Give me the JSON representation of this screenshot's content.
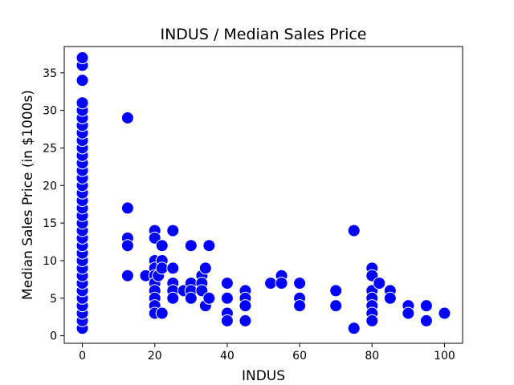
{
  "chart_data": {
    "type": "scatter",
    "title": "INDUS / Median Sales Price",
    "xlabel": "INDUS",
    "ylabel": "Median Sales Price (in $1000s)",
    "xlim": [
      -5,
      105
    ],
    "ylim": [
      -1,
      38.5
    ],
    "xticks": [
      0,
      20,
      40,
      60,
      80,
      100
    ],
    "yticks": [
      0,
      5,
      10,
      15,
      20,
      25,
      30,
      35
    ],
    "grid": false,
    "legend": "none",
    "marker_color": "#0000ff",
    "points": [
      [
        0,
        1
      ],
      [
        0,
        2
      ],
      [
        0,
        3
      ],
      [
        0,
        4
      ],
      [
        0,
        5
      ],
      [
        0,
        6
      ],
      [
        0,
        7
      ],
      [
        0,
        8
      ],
      [
        0,
        9
      ],
      [
        0,
        10
      ],
      [
        0,
        11
      ],
      [
        0,
        12
      ],
      [
        0,
        13
      ],
      [
        0,
        14
      ],
      [
        0,
        15
      ],
      [
        0,
        16
      ],
      [
        0,
        17
      ],
      [
        0,
        18
      ],
      [
        0,
        19
      ],
      [
        0,
        20
      ],
      [
        0,
        21
      ],
      [
        0,
        22
      ],
      [
        0,
        23
      ],
      [
        0,
        24
      ],
      [
        0,
        25
      ],
      [
        0,
        26
      ],
      [
        0,
        27
      ],
      [
        0,
        28
      ],
      [
        0,
        29
      ],
      [
        0,
        30
      ],
      [
        0,
        31
      ],
      [
        0,
        34
      ],
      [
        0,
        36
      ],
      [
        0,
        37
      ],
      [
        12.5,
        29
      ],
      [
        12.5,
        17
      ],
      [
        12.5,
        13
      ],
      [
        12.5,
        12
      ],
      [
        12.5,
        8
      ],
      [
        17.5,
        8
      ],
      [
        20,
        14
      ],
      [
        20,
        13
      ],
      [
        20,
        10
      ],
      [
        20,
        9
      ],
      [
        20,
        8
      ],
      [
        20,
        7
      ],
      [
        20,
        6
      ],
      [
        20,
        5
      ],
      [
        20,
        4
      ],
      [
        20,
        3
      ],
      [
        21,
        8
      ],
      [
        22,
        12
      ],
      [
        22,
        10
      ],
      [
        22,
        9
      ],
      [
        22,
        3
      ],
      [
        25,
        14
      ],
      [
        25,
        9
      ],
      [
        25,
        7
      ],
      [
        25,
        6
      ],
      [
        25,
        5
      ],
      [
        28,
        6
      ],
      [
        30,
        12
      ],
      [
        30,
        7
      ],
      [
        30,
        6
      ],
      [
        30,
        5
      ],
      [
        33,
        8
      ],
      [
        33,
        7
      ],
      [
        33,
        6
      ],
      [
        34,
        9
      ],
      [
        34,
        4
      ],
      [
        35,
        12
      ],
      [
        35,
        5
      ],
      [
        40,
        7
      ],
      [
        40,
        5
      ],
      [
        40,
        3
      ],
      [
        40,
        2
      ],
      [
        45,
        6
      ],
      [
        45,
        5
      ],
      [
        45,
        4
      ],
      [
        45,
        2
      ],
      [
        52,
        7
      ],
      [
        55,
        8
      ],
      [
        55,
        7
      ],
      [
        60,
        7
      ],
      [
        60,
        5
      ],
      [
        60,
        4
      ],
      [
        70,
        6
      ],
      [
        70,
        4
      ],
      [
        75,
        14
      ],
      [
        75,
        1
      ],
      [
        80,
        9
      ],
      [
        80,
        8
      ],
      [
        80,
        6
      ],
      [
        80,
        5
      ],
      [
        80,
        4
      ],
      [
        80,
        3
      ],
      [
        80,
        2
      ],
      [
        82,
        7
      ],
      [
        85,
        6
      ],
      [
        85,
        5
      ],
      [
        90,
        4
      ],
      [
        90,
        3
      ],
      [
        95,
        4
      ],
      [
        95,
        2
      ],
      [
        100,
        3
      ]
    ]
  }
}
